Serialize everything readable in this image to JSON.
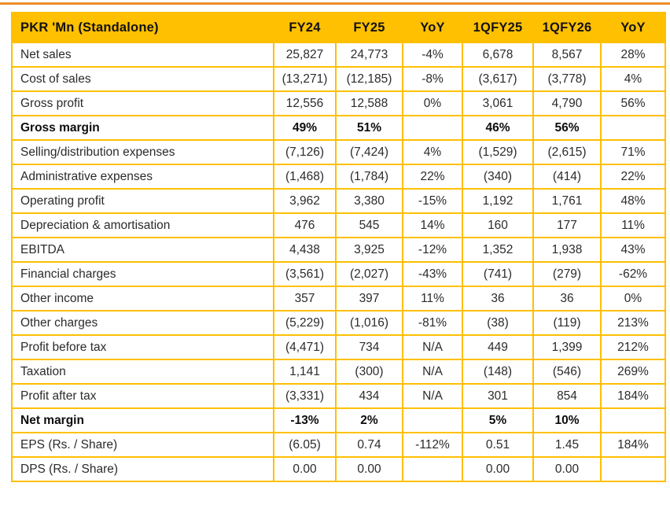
{
  "colors": {
    "top_divider": "#EF8B2A",
    "table_gold": "#FFC001",
    "header_text": "#111111",
    "body_text": "#2b2b2b"
  },
  "table": {
    "columns": [
      {
        "key": "label",
        "label": "PKR 'Mn (Standalone)"
      },
      {
        "key": "fy24",
        "label": "FY24"
      },
      {
        "key": "fy25",
        "label": "FY25"
      },
      {
        "key": "yoy1",
        "label": "YoY"
      },
      {
        "key": "1qfy25",
        "label": "1QFY25"
      },
      {
        "key": "1qfy26",
        "label": "1QFY26"
      },
      {
        "key": "yoy2",
        "label": "YoY"
      }
    ],
    "rows": [
      {
        "label": "Net sales",
        "bold": false,
        "values": [
          "25,827",
          "24,773",
          "-4%",
          "6,678",
          "8,567",
          "28%"
        ]
      },
      {
        "label": "Cost of sales",
        "bold": false,
        "values": [
          "(13,271)",
          "(12,185)",
          "-8%",
          "(3,617)",
          "(3,778)",
          "4%"
        ]
      },
      {
        "label": "Gross profit",
        "bold": false,
        "values": [
          "12,556",
          "12,588",
          "0%",
          "3,061",
          "4,790",
          "56%"
        ]
      },
      {
        "label": "Gross margin",
        "bold": true,
        "values": [
          "49%",
          "51%",
          "",
          "46%",
          "56%",
          ""
        ]
      },
      {
        "label": "Selling/distribution expenses",
        "bold": false,
        "values": [
          "(7,126)",
          "(7,424)",
          "4%",
          "(1,529)",
          "(2,615)",
          "71%"
        ]
      },
      {
        "label": "Administrative expenses",
        "bold": false,
        "values": [
          "(1,468)",
          "(1,784)",
          "22%",
          "(340)",
          "(414)",
          "22%"
        ]
      },
      {
        "label": "Operating profit",
        "bold": false,
        "values": [
          "3,962",
          "3,380",
          "-15%",
          "1,192",
          "1,761",
          "48%"
        ]
      },
      {
        "label": "Depreciation & amortisation",
        "bold": false,
        "values": [
          "476",
          "545",
          "14%",
          "160",
          "177",
          "11%"
        ]
      },
      {
        "label": "EBITDA",
        "bold": false,
        "values": [
          "4,438",
          "3,925",
          "-12%",
          "1,352",
          "1,938",
          "43%"
        ]
      },
      {
        "label": "Financial charges",
        "bold": false,
        "values": [
          "(3,561)",
          "(2,027)",
          "-43%",
          "(741)",
          "(279)",
          "-62%"
        ]
      },
      {
        "label": "Other income",
        "bold": false,
        "values": [
          "357",
          "397",
          "11%",
          "36",
          "36",
          "0%"
        ]
      },
      {
        "label": "Other charges",
        "bold": false,
        "values": [
          "(5,229)",
          "(1,016)",
          "-81%",
          "(38)",
          "(119)",
          "213%"
        ]
      },
      {
        "label": "Profit before tax",
        "bold": false,
        "values": [
          "(4,471)",
          "734",
          "N/A",
          "449",
          "1,399",
          "212%"
        ]
      },
      {
        "label": "Taxation",
        "bold": false,
        "values": [
          "1,141",
          "(300)",
          "N/A",
          "(148)",
          "(546)",
          "269%"
        ]
      },
      {
        "label": "Profit after tax",
        "bold": false,
        "values": [
          "(3,331)",
          "434",
          "N/A",
          "301",
          "854",
          "184%"
        ]
      },
      {
        "label": "Net margin",
        "bold": true,
        "values": [
          "-13%",
          "2%",
          "",
          "5%",
          "10%",
          ""
        ]
      },
      {
        "label": "EPS (Rs. / Share)",
        "bold": false,
        "values": [
          "(6.05)",
          "0.74",
          "-112%",
          "0.51",
          "1.45",
          "184%"
        ]
      },
      {
        "label": "DPS (Rs. / Share)",
        "bold": false,
        "values": [
          "0.00",
          "0.00",
          "",
          "0.00",
          "0.00",
          ""
        ]
      }
    ]
  }
}
